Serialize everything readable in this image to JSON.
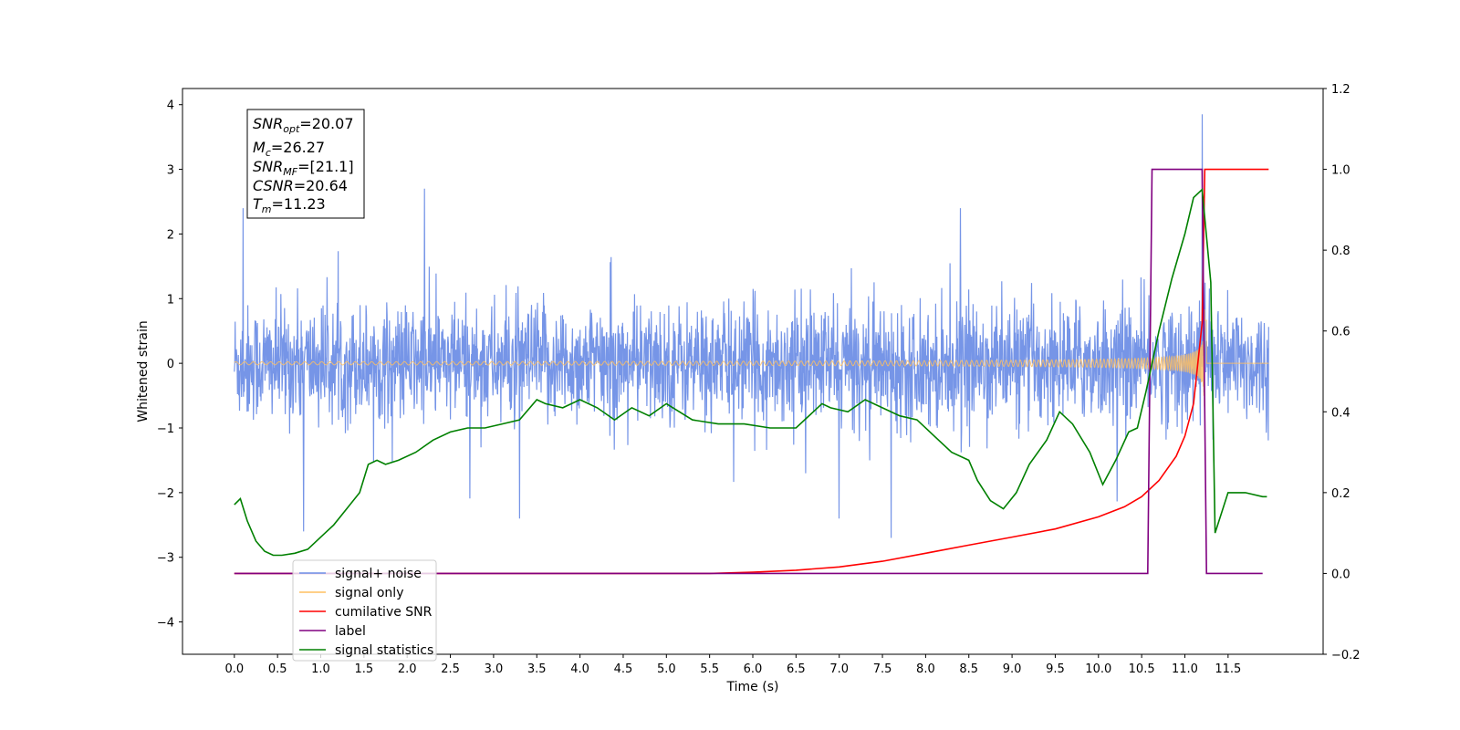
{
  "chart_data": {
    "type": "line",
    "xlabel": "Time (s)",
    "ylabel": "Whitened strain",
    "y2label": "",
    "xlim": [
      -0.6,
      12.6
    ],
    "ylim": [
      -4.5,
      4.25
    ],
    "y2lim": [
      -0.2,
      1.2
    ],
    "xticks": [
      "0.0",
      "0.5",
      "1.0",
      "1.5",
      "2.0",
      "2.5",
      "3.0",
      "3.5",
      "4.0",
      "4.5",
      "5.0",
      "5.5",
      "6.0",
      "6.5",
      "7.0",
      "7.5",
      "8.0",
      "8.5",
      "9.0",
      "9.5",
      "10.0",
      "10.5",
      "11.0",
      "11.5"
    ],
    "yticks": [
      "4",
      "3",
      "2",
      "1",
      "0",
      "−1",
      "−2",
      "−3",
      "−4"
    ],
    "y2ticks": [
      "1.2",
      "1.0",
      "0.8",
      "0.6",
      "0.4",
      "0.2",
      "0.0",
      "−0.2"
    ],
    "info_box": {
      "snr_opt": {
        "main": "SNR",
        "sub": "opt",
        "value": "=20.07"
      },
      "mc": {
        "main": "M",
        "sub": "c",
        "value": "=26.27"
      },
      "snr_mf": {
        "main": "SNR",
        "sub": "MF",
        "value": "=[21.1]"
      },
      "csnr": {
        "main": "CSNR",
        "sub": "",
        "value": "=20.64"
      },
      "tm": {
        "main": "T",
        "sub": "m",
        "value": "=11.23"
      }
    },
    "legend_position": "lower-left",
    "legend": [
      {
        "label": "signal+ noise",
        "color": "#6f8fe6"
      },
      {
        "label": "signal only",
        "color": "#ffc061"
      },
      {
        "label": "cumilative SNR",
        "color": "#ff0000"
      },
      {
        "label": "label",
        "color": "#800080"
      },
      {
        "label": "signal statistics",
        "color": "#008000"
      }
    ],
    "series": [
      {
        "name": "signal+ noise",
        "axis": "left",
        "description_points": {
          "envelope_low": -1.3,
          "envelope_high": 1.3,
          "spike_times": [
            0.1,
            0.8,
            2.2,
            3.3,
            7.0,
            7.6,
            8.4,
            11.2
          ],
          "spike_values": [
            2.4,
            -2.6,
            2.7,
            -2.4,
            -2.4,
            -2.7,
            2.4,
            3.85
          ]
        }
      },
      {
        "name": "signal only",
        "axis": "left",
        "chirp": {
          "start": 0.0,
          "merger": 11.23,
          "end": 11.97,
          "peak_amplitude": 3.2
        }
      },
      {
        "name": "cumilative SNR",
        "axis": "right",
        "x": [
          0.0,
          5.5,
          6.0,
          6.5,
          7.0,
          7.5,
          8.0,
          8.5,
          9.0,
          9.5,
          10.0,
          10.3,
          10.5,
          10.7,
          10.9,
          11.0,
          11.1,
          11.2,
          11.23,
          11.97
        ],
        "y": [
          0.0,
          0.0,
          0.003,
          0.008,
          0.016,
          0.03,
          0.05,
          0.07,
          0.09,
          0.11,
          0.14,
          0.165,
          0.19,
          0.23,
          0.29,
          0.34,
          0.42,
          0.62,
          1.0,
          1.0
        ]
      },
      {
        "name": "label",
        "axis": "right",
        "x": [
          0.0,
          10.57,
          10.62,
          11.2,
          11.25,
          11.9
        ],
        "y": [
          0.0,
          0.0,
          1.0,
          1.0,
          0.0,
          0.0
        ]
      },
      {
        "name": "signal statistics",
        "axis": "right",
        "x": [
          0.0,
          0.07,
          0.15,
          0.25,
          0.35,
          0.45,
          0.55,
          0.7,
          0.85,
          1.0,
          1.15,
          1.3,
          1.45,
          1.55,
          1.65,
          1.75,
          1.9,
          2.1,
          2.3,
          2.5,
          2.7,
          2.9,
          3.1,
          3.3,
          3.5,
          3.6,
          3.8,
          4.0,
          4.2,
          4.4,
          4.6,
          4.8,
          5.0,
          5.3,
          5.6,
          5.9,
          6.2,
          6.5,
          6.8,
          6.9,
          7.1,
          7.3,
          7.5,
          7.7,
          7.9,
          8.1,
          8.3,
          8.5,
          8.6,
          8.75,
          8.9,
          9.05,
          9.2,
          9.4,
          9.55,
          9.7,
          9.9,
          10.05,
          10.2,
          10.35,
          10.45,
          10.55,
          10.7,
          10.85,
          11.0,
          11.1,
          11.2,
          11.3,
          11.35,
          11.5,
          11.7,
          11.9,
          11.95
        ],
        "y": [
          0.17,
          0.185,
          0.13,
          0.08,
          0.055,
          0.045,
          0.045,
          0.05,
          0.06,
          0.09,
          0.12,
          0.16,
          0.2,
          0.27,
          0.28,
          0.27,
          0.28,
          0.3,
          0.33,
          0.35,
          0.36,
          0.36,
          0.37,
          0.38,
          0.43,
          0.42,
          0.41,
          0.43,
          0.41,
          0.38,
          0.41,
          0.39,
          0.42,
          0.38,
          0.37,
          0.37,
          0.36,
          0.36,
          0.42,
          0.41,
          0.4,
          0.43,
          0.41,
          0.39,
          0.38,
          0.34,
          0.3,
          0.28,
          0.23,
          0.18,
          0.16,
          0.2,
          0.27,
          0.33,
          0.4,
          0.37,
          0.3,
          0.22,
          0.28,
          0.35,
          0.36,
          0.45,
          0.6,
          0.73,
          0.84,
          0.93,
          0.95,
          0.72,
          0.1,
          0.2,
          0.2,
          0.19,
          0.19
        ]
      }
    ]
  }
}
